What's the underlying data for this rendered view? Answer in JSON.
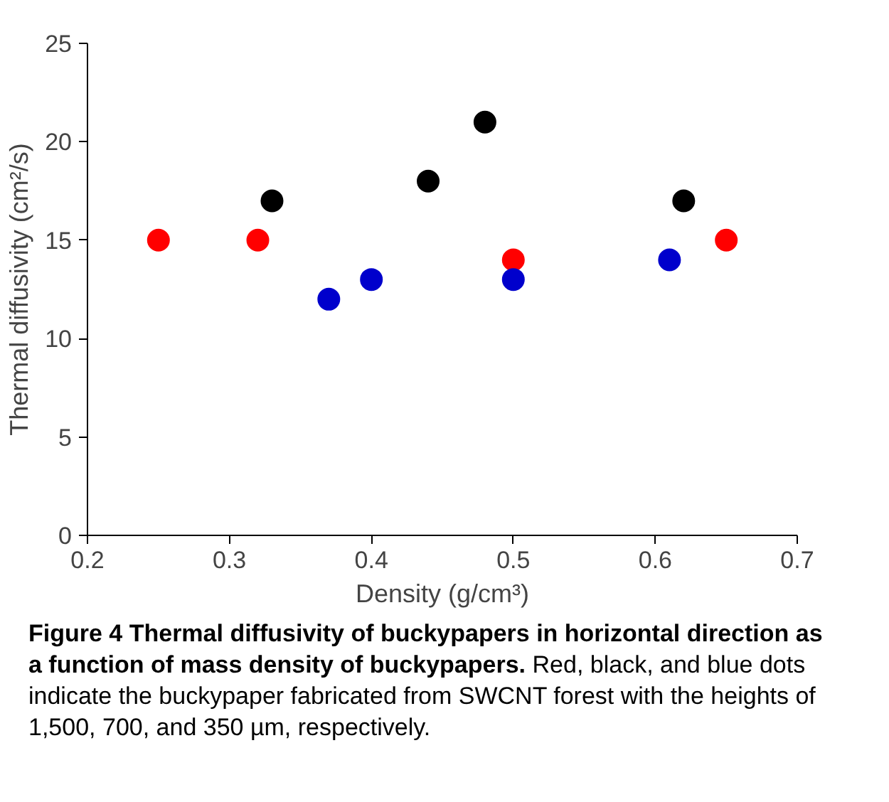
{
  "chart_data": {
    "type": "scatter",
    "xlabel": "Density (g/cm³)",
    "ylabel": "Thermal diffusivity (cm²/s)",
    "xlim": [
      0.2,
      0.7
    ],
    "xticks": [
      {
        "value": 0.2,
        "label": "0.2"
      },
      {
        "value": 0.3,
        "label": "0.3"
      },
      {
        "value": 0.4,
        "label": "0.4"
      },
      {
        "value": 0.5,
        "label": "0.5"
      },
      {
        "value": 0.6,
        "label": "0.6"
      },
      {
        "value": 0.7,
        "label": "0.7"
      }
    ],
    "ylim": [
      0,
      25
    ],
    "yticks": [
      0,
      5,
      10,
      15,
      20,
      25
    ],
    "grid": false,
    "marker": "circle",
    "series": [
      {
        "color": "#ff0000",
        "x": [
          0.25,
          0.32,
          0.5,
          0.65
        ],
        "values": [
          15,
          15,
          14,
          15
        ]
      },
      {
        "color": "#000000",
        "x": [
          0.33,
          0.44,
          0.48,
          0.62
        ],
        "values": [
          17,
          18,
          21,
          17
        ]
      },
      {
        "color": "#0000cc",
        "x": [
          0.37,
          0.4,
          0.5,
          0.61
        ],
        "values": [
          12,
          13,
          13,
          14
        ]
      }
    ],
    "annotations": [
      "Figure 4 Thermal diffusivity of buckypapers in horizontal direction as a function of mass density of buckypapers.",
      "Red, black, and blue dots indicate the buckypaper fabricated from SWCNT forest with the heights of 1,500, 700, and 350 µm, respectively."
    ]
  }
}
